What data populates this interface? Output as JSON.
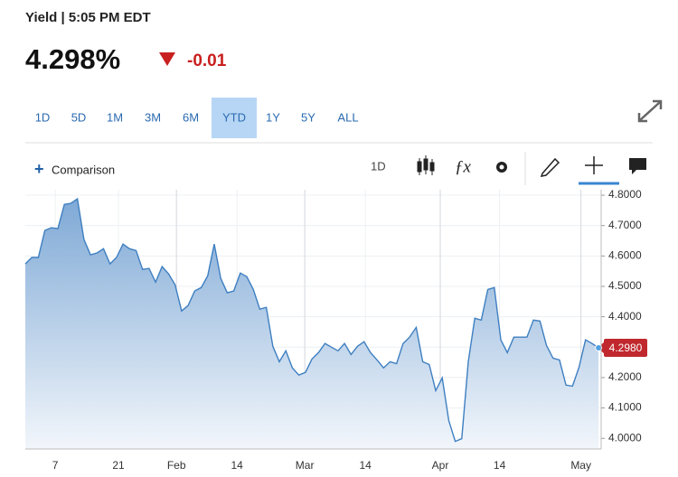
{
  "header": {
    "title": "Yield | 5:05 PM EDT",
    "price": "4.298%",
    "change": "-0.01"
  },
  "ranges": [
    "1D",
    "5D",
    "1M",
    "3M",
    "6M",
    "YTD",
    "1Y",
    "5Y",
    "ALL"
  ],
  "selected_range": "YTD",
  "toolbar": {
    "comparison": "Comparison",
    "interval": "1D"
  },
  "chart_data": {
    "type": "area",
    "color": "#3e7fc1",
    "grid": true,
    "x": [
      0,
      1,
      2,
      3,
      4,
      5,
      6,
      7,
      8,
      9,
      10,
      11,
      12,
      13,
      14,
      15,
      16,
      17,
      18,
      19,
      20,
      21,
      22,
      23,
      24,
      25,
      26,
      27,
      28,
      29,
      30,
      31,
      32,
      33,
      34,
      35,
      36,
      37,
      38,
      39,
      40,
      41,
      42,
      43,
      44,
      45,
      46,
      47,
      48,
      49,
      50,
      51,
      52,
      53,
      54,
      55,
      56,
      57,
      58,
      59,
      60,
      61,
      62,
      63,
      64,
      65,
      66,
      67,
      68,
      69,
      70,
      71,
      72,
      73,
      74,
      75,
      76,
      77,
      78,
      79,
      80,
      81,
      82,
      83,
      84,
      85,
      86,
      87,
      88
    ],
    "values": [
      4.574,
      4.595,
      4.595,
      4.684,
      4.693,
      4.69,
      4.77,
      4.773,
      4.788,
      4.654,
      4.604,
      4.61,
      4.624,
      4.574,
      4.595,
      4.639,
      4.624,
      4.618,
      4.556,
      4.559,
      4.514,
      4.565,
      4.541,
      4.505,
      4.419,
      4.437,
      4.485,
      4.496,
      4.535,
      4.639,
      4.526,
      4.479,
      4.485,
      4.544,
      4.532,
      4.49,
      4.425,
      4.431,
      4.303,
      4.252,
      4.288,
      4.232,
      4.208,
      4.217,
      4.261,
      4.282,
      4.312,
      4.3,
      4.288,
      4.312,
      4.276,
      4.303,
      4.318,
      4.282,
      4.258,
      4.232,
      4.252,
      4.246,
      4.312,
      4.333,
      4.365,
      4.252,
      4.243,
      4.157,
      4.199,
      4.059,
      3.99,
      3.999,
      4.252,
      4.395,
      4.389,
      4.49,
      4.496,
      4.324,
      4.282,
      4.333,
      4.333,
      4.333,
      4.389,
      4.386,
      4.306,
      4.264,
      4.258,
      4.175,
      4.172,
      4.234,
      4.324,
      4.312,
      4.298
    ],
    "last_label": "4.2980",
    "xlim": [
      0,
      88.4
    ],
    "xticks": [
      {
        "value": 4.6,
        "label": "7"
      },
      {
        "value": 14.3,
        "label": "21"
      },
      {
        "value": 23.2,
        "label": "Feb"
      },
      {
        "value": 32.5,
        "label": "14"
      },
      {
        "value": 42.9,
        "label": "Mar"
      },
      {
        "value": 52.2,
        "label": "14"
      },
      {
        "value": 63.7,
        "label": "Apr"
      },
      {
        "value": 72.8,
        "label": "14"
      },
      {
        "value": 85.3,
        "label": "May"
      }
    ],
    "ylim": [
      3.965,
      4.818
    ],
    "yticks": [
      {
        "value": 4.0,
        "label": "4.0000"
      },
      {
        "value": 4.1,
        "label": "4.1000"
      },
      {
        "value": 4.2,
        "label": "4.2000"
      },
      {
        "value": 4.3,
        "label": "4.3000"
      },
      {
        "value": 4.4,
        "label": "4.4000"
      },
      {
        "value": 4.5,
        "label": "4.5000"
      },
      {
        "value": 4.6,
        "label": "4.6000"
      },
      {
        "value": 4.7,
        "label": "4.7000"
      },
      {
        "value": 4.8,
        "label": "4.8000"
      }
    ]
  }
}
